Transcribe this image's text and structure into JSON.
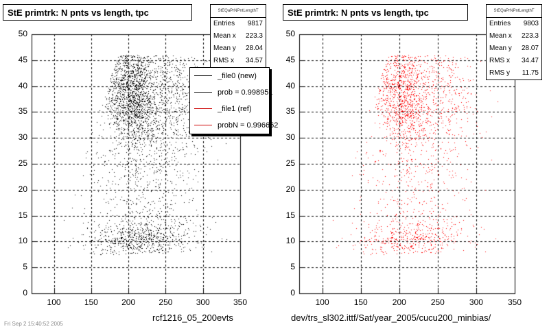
{
  "left_panel": {
    "title": "StE primtrk: N pnts vs length, tpc",
    "stats": {
      "header": "StEQaPrNPntLengthT",
      "rows": [
        {
          "label": "Entries",
          "value": "9817"
        },
        {
          "label": "Mean x",
          "value": "223.3"
        },
        {
          "label": "Mean y",
          "value": "28.04"
        },
        {
          "label": "RMS x",
          "value": "34.57"
        }
      ]
    },
    "legend": [
      {
        "label": "_file0 (new)",
        "color": "#000000"
      },
      {
        "label": "prob = 0.998951",
        "color": "#000000"
      },
      {
        "label": "_file1 (ref)",
        "color": "#cc0000"
      },
      {
        "label": "probN = 0.996662",
        "color": "#cc0000"
      }
    ],
    "bottom_label": "rcf1216_05_200evts",
    "tiny_label": "Fri Sep 2 15:40:52 2005"
  },
  "right_panel": {
    "title": "StE primtrk: N pnts vs length, tpc",
    "stats": {
      "header": "StEQaPrNPntLengthT",
      "rows": [
        {
          "label": "Entries",
          "value": "9803"
        },
        {
          "label": "Mean x",
          "value": "223.3"
        },
        {
          "label": "Mean y",
          "value": "28.07"
        },
        {
          "label": "RMS x",
          "value": "34.47"
        },
        {
          "label": "RMS y",
          "value": "11.75"
        }
      ]
    },
    "bottom_label": "dev/trs_sl302.ittf/Sat/year_2005/cucu200_minbias/"
  },
  "chart_data": [
    {
      "type": "scatter",
      "title": "StE primtrk: N pnts vs length, tpc",
      "xlim": [
        70,
        350
      ],
      "ylim": [
        0,
        50
      ],
      "x_ticks": [
        100,
        150,
        200,
        250,
        300,
        350
      ],
      "y_ticks": [
        0,
        5,
        10,
        15,
        20,
        25,
        30,
        35,
        40,
        45,
        50
      ],
      "grid": true,
      "color": "#000000",
      "series": [
        {
          "name": "_file0 (new)",
          "entries": 9817,
          "mean_x": 223.3,
          "mean_y": 28.04,
          "rms_x": 34.57
        }
      ]
    },
    {
      "type": "scatter",
      "title": "StE primtrk: N pnts vs length, tpc",
      "xlim": [
        70,
        350
      ],
      "ylim": [
        0,
        50
      ],
      "x_ticks": [
        100,
        150,
        200,
        250,
        300,
        350
      ],
      "y_ticks": [
        0,
        5,
        10,
        15,
        20,
        25,
        30,
        35,
        40,
        45,
        50
      ],
      "grid": true,
      "color": "#ff0000",
      "series": [
        {
          "name": "_file1 (ref)",
          "entries": 9803,
          "mean_x": 223.3,
          "mean_y": 28.07,
          "rms_x": 34.47,
          "rms_y": 11.75
        }
      ]
    }
  ]
}
